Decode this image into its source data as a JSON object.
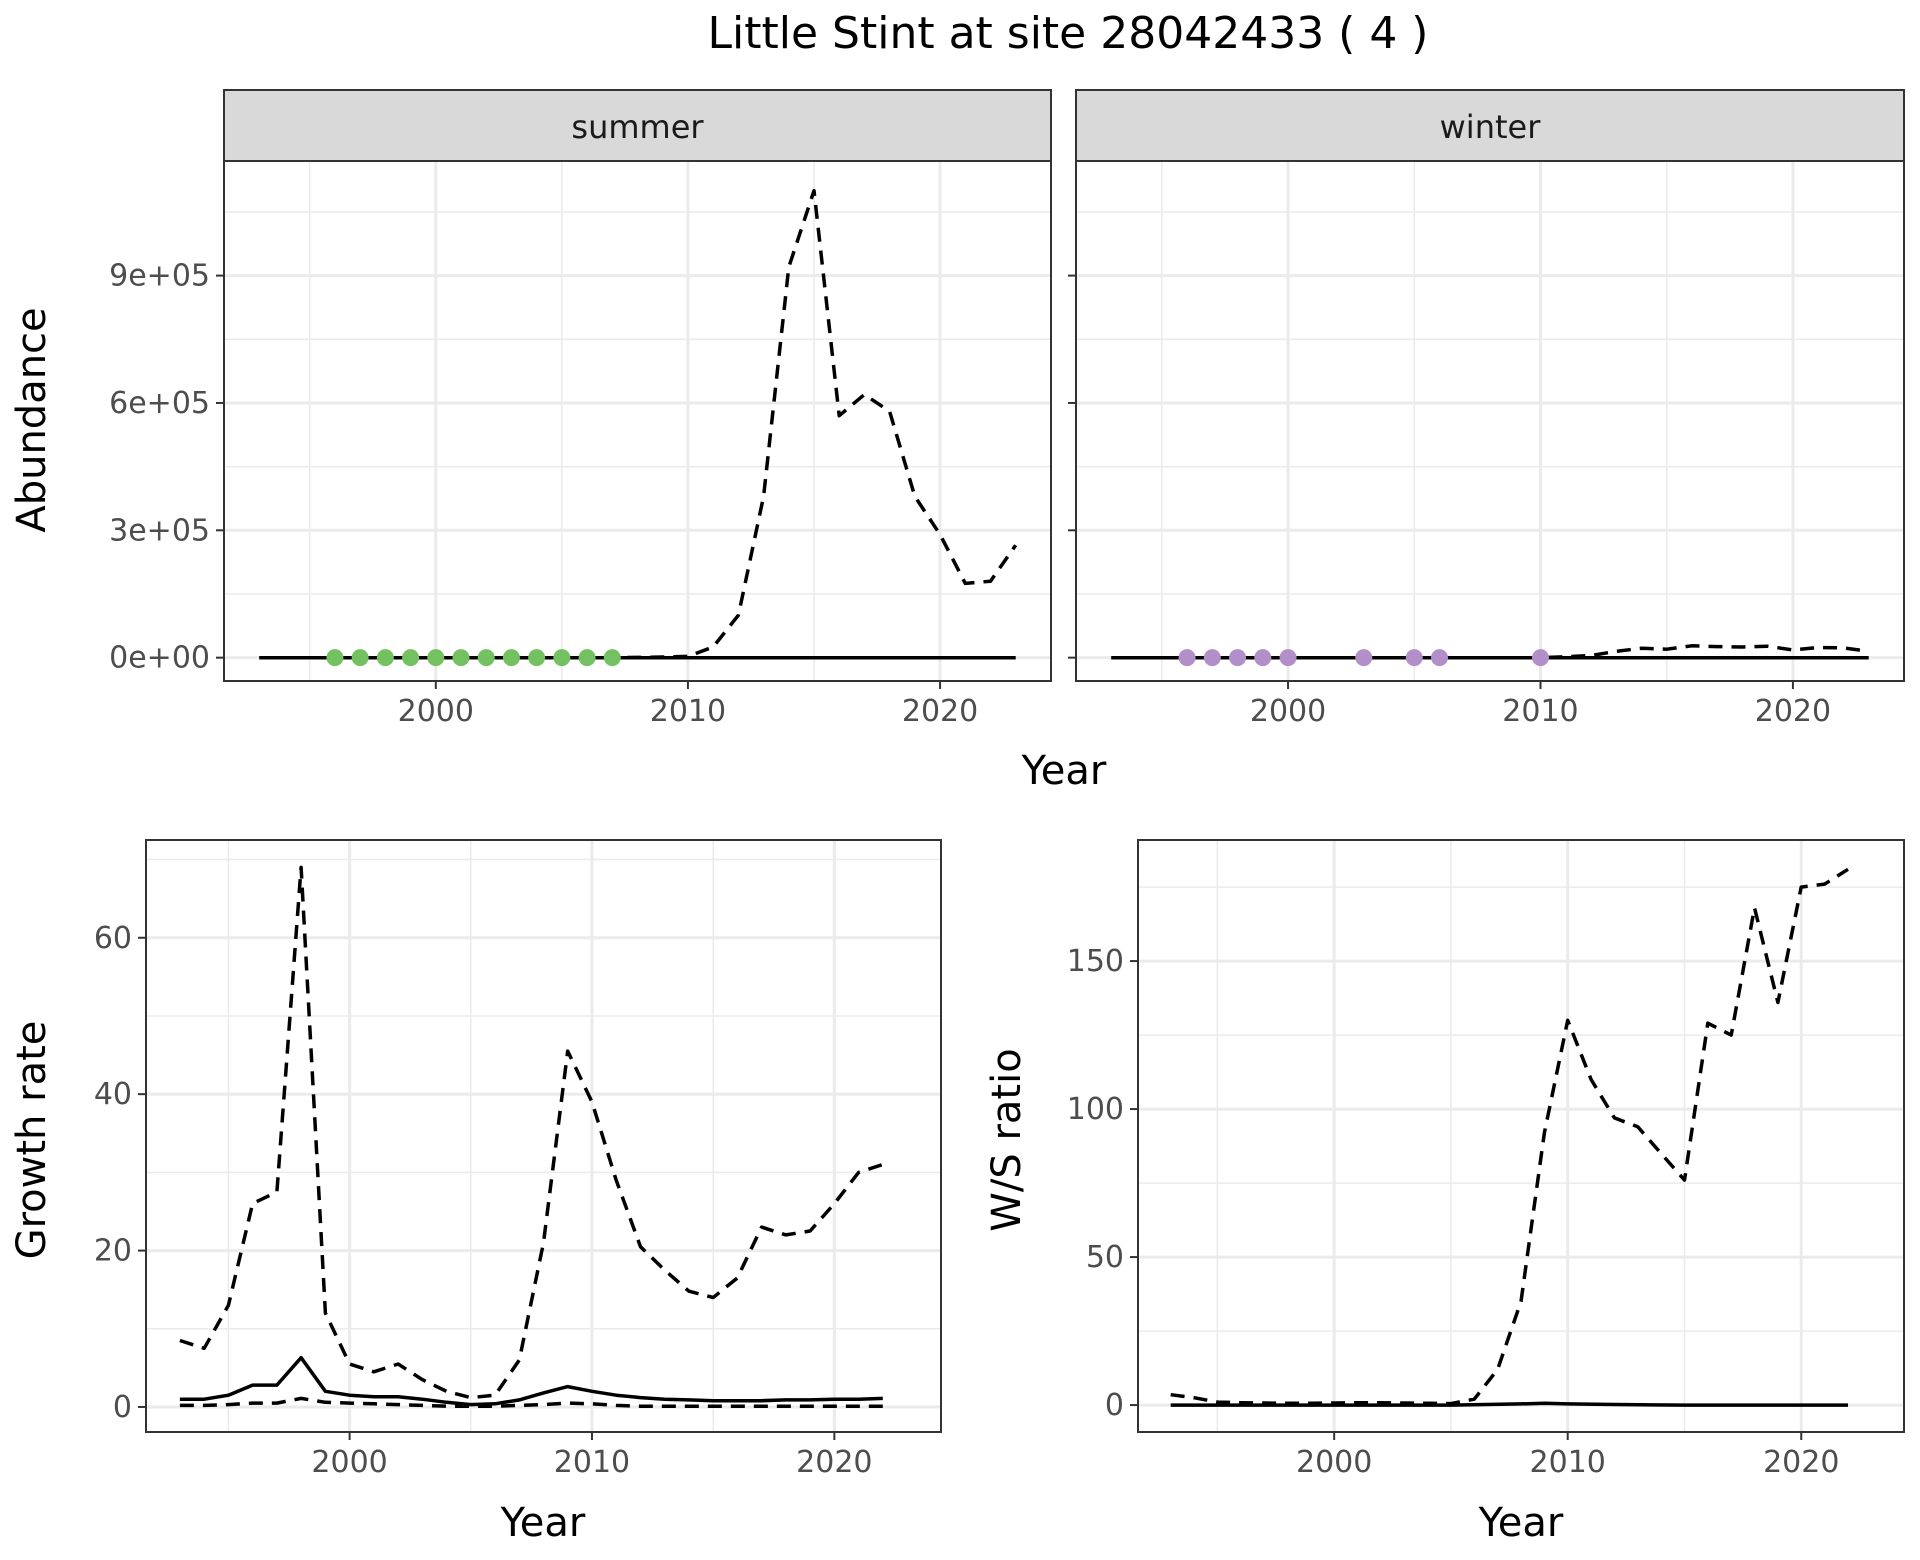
{
  "figure": {
    "title": "Little Stint at site 28042433 ( 4 )"
  },
  "colors": {
    "summer_points": "#74c162",
    "winter_points": "#b38fc9",
    "line": "#000000",
    "grid_major": "#ebebeb",
    "strip_fill": "#d9d9d9",
    "strip_border": "#333333",
    "tick_label": "#4d4d4d"
  },
  "chart_data": [
    {
      "type": "line",
      "panel": "summer",
      "strip_label": "summer",
      "xlabel": "Year",
      "ylabel": "Abundance",
      "xlim": [
        1991.6,
        2024.4
      ],
      "ylim": [
        -55000,
        1170000
      ],
      "x_ticks": [
        2000,
        2010,
        2020
      ],
      "x_tick_labels": [
        "2000",
        "2010",
        "2020"
      ],
      "y_ticks": [
        0,
        300000,
        600000,
        900000
      ],
      "y_tick_labels": [
        "0e+00",
        "3e+05",
        "6e+05",
        "9e+05"
      ],
      "grid": true,
      "series": [
        {
          "style": "dashed",
          "x": [
            1993,
            1994,
            1995,
            1996,
            1997,
            1998,
            1999,
            2000,
            2001,
            2002,
            2003,
            2004,
            2005,
            2006,
            2007,
            2008,
            2009,
            2010,
            2011,
            2012,
            2013,
            2014,
            2015,
            2016,
            2017,
            2018,
            2019,
            2020,
            2021,
            2022,
            2023
          ],
          "y": [
            0,
            0,
            0,
            0,
            0,
            0,
            0,
            0,
            0,
            0,
            0,
            0,
            0,
            0,
            0,
            500,
            1500,
            3000,
            25000,
            100000,
            380000,
            920000,
            1100000,
            570000,
            620000,
            580000,
            380000,
            290000,
            175000,
            180000,
            265000
          ]
        },
        {
          "style": "solid",
          "x": [
            1993,
            2023
          ],
          "y": [
            0,
            0
          ]
        }
      ],
      "points": {
        "x": [
          1996,
          1997,
          1998,
          1999,
          2000,
          2001,
          2002,
          2003,
          2004,
          2005,
          2006,
          2007
        ],
        "y": [
          0,
          0,
          0,
          0,
          0,
          0,
          0,
          0,
          0,
          0,
          0,
          0
        ]
      }
    },
    {
      "type": "line",
      "panel": "winter",
      "strip_label": "winter",
      "xlabel": "Year",
      "ylabel": "Abundance",
      "xlim": [
        1991.6,
        2024.4
      ],
      "ylim": [
        -55000,
        1170000
      ],
      "x_ticks": [
        2000,
        2010,
        2020
      ],
      "x_tick_labels": [
        "2000",
        "2010",
        "2020"
      ],
      "y_ticks": [
        0,
        300000,
        600000,
        900000
      ],
      "grid": true,
      "series": [
        {
          "style": "dashed",
          "x": [
            1993,
            1994,
            1995,
            1996,
            1997,
            1998,
            1999,
            2000,
            2001,
            2002,
            2003,
            2004,
            2005,
            2006,
            2007,
            2008,
            2009,
            2010,
            2011,
            2012,
            2013,
            2014,
            2015,
            2016,
            2017,
            2018,
            2019,
            2020,
            2021,
            2022,
            2023
          ],
          "y": [
            0,
            0,
            0,
            0,
            0,
            0,
            0,
            0,
            0,
            0,
            0,
            0,
            0,
            0,
            0,
            0,
            0,
            0,
            2000,
            5000,
            15000,
            22000,
            20000,
            28000,
            26000,
            25000,
            27000,
            18000,
            24000,
            23000,
            15000
          ]
        },
        {
          "style": "solid",
          "x": [
            1993,
            2023
          ],
          "y": [
            0,
            0
          ]
        }
      ],
      "points": {
        "x": [
          1996,
          1997,
          1998,
          1999,
          2000,
          2003,
          2005,
          2006,
          2010
        ],
        "y": [
          0,
          0,
          0,
          0,
          0,
          0,
          0,
          0,
          0
        ]
      }
    },
    {
      "type": "line",
      "panel": "growth",
      "xlabel": "Year",
      "ylabel": "Growth rate",
      "xlim": [
        1991.6,
        2024.4
      ],
      "ylim": [
        -3.2,
        72.5
      ],
      "x_ticks": [
        2000,
        2010,
        2020
      ],
      "x_tick_labels": [
        "2000",
        "2010",
        "2020"
      ],
      "y_ticks": [
        0,
        20,
        40,
        60
      ],
      "y_tick_labels": [
        "0",
        "20",
        "40",
        "60"
      ],
      "grid": true,
      "series": [
        {
          "style": "dashed",
          "x": [
            1993,
            1994,
            1995,
            1996,
            1997,
            1998,
            1999,
            2000,
            2001,
            2002,
            2003,
            2004,
            2005,
            2006,
            2007,
            2008,
            2009,
            2010,
            2011,
            2012,
            2013,
            2014,
            2015,
            2016,
            2017,
            2018,
            2019,
            2020,
            2021,
            2022
          ],
          "y": [
            8.5,
            7.5,
            13,
            26,
            27.5,
            69,
            12,
            5.5,
            4.5,
            5.5,
            3.5,
            2,
            1.2,
            1.5,
            6,
            21,
            45.5,
            39,
            29,
            20.5,
            17.5,
            14.8,
            14,
            16.5,
            23,
            22,
            22.5,
            26,
            30,
            31
          ]
        },
        {
          "style": "solid",
          "x": [
            1993,
            1994,
            1995,
            1996,
            1997,
            1998,
            1999,
            2000,
            2001,
            2002,
            2003,
            2004,
            2005,
            2006,
            2007,
            2008,
            2009,
            2010,
            2011,
            2012,
            2013,
            2014,
            2015,
            2016,
            2017,
            2018,
            2019,
            2020,
            2021,
            2022
          ],
          "y": [
            1,
            1,
            1.5,
            2.8,
            2.8,
            6.3,
            2,
            1.5,
            1.3,
            1.3,
            1,
            0.6,
            0.3,
            0.4,
            0.9,
            1.8,
            2.6,
            2,
            1.5,
            1.2,
            1,
            0.9,
            0.8,
            0.8,
            0.8,
            0.9,
            0.9,
            1,
            1,
            1.1
          ]
        },
        {
          "style": "dashed",
          "x": [
            1993,
            1994,
            1995,
            1996,
            1997,
            1998,
            1999,
            2000,
            2001,
            2002,
            2003,
            2004,
            2005,
            2006,
            2007,
            2008,
            2009,
            2010,
            2011,
            2012,
            2013,
            2014,
            2015,
            2016,
            2017,
            2018,
            2019,
            2020,
            2021,
            2022
          ],
          "y": [
            0.2,
            0.2,
            0.3,
            0.5,
            0.5,
            1.1,
            0.6,
            0.5,
            0.4,
            0.3,
            0.2,
            0.1,
            0.1,
            0.1,
            0.2,
            0.3,
            0.5,
            0.4,
            0.2,
            0.1,
            0.1,
            0.1,
            0.1,
            0.1,
            0.1,
            0.1,
            0.1,
            0.1,
            0.1,
            0.1
          ]
        }
      ]
    },
    {
      "type": "line",
      "panel": "ratio",
      "xlabel": "Year",
      "ylabel": "W/S ratio",
      "xlim": [
        1991.6,
        2024.4
      ],
      "ylim": [
        -9.1,
        190.9
      ],
      "x_ticks": [
        2000,
        2010,
        2020
      ],
      "x_tick_labels": [
        "2000",
        "2010",
        "2020"
      ],
      "y_ticks": [
        0,
        50,
        100,
        150
      ],
      "y_tick_labels": [
        "0",
        "50",
        "100",
        "150"
      ],
      "grid": true,
      "series": [
        {
          "style": "dashed",
          "x": [
            1993,
            1994,
            1995,
            1996,
            1997,
            1998,
            1999,
            2000,
            2001,
            2002,
            2003,
            2004,
            2005,
            2006,
            2007,
            2008,
            2009,
            2010,
            2011,
            2012,
            2013,
            2014,
            2015,
            2016,
            2017,
            2018,
            2019,
            2020,
            2021,
            2022
          ],
          "y": [
            3.5,
            2.5,
            1,
            0.8,
            0.7,
            0.6,
            0.6,
            0.7,
            0.8,
            0.8,
            0.7,
            0.6,
            0.5,
            2,
            12,
            35,
            92,
            130,
            110,
            97,
            94,
            85,
            76,
            129,
            125,
            168,
            136,
            175,
            176,
            181
          ]
        },
        {
          "style": "solid",
          "x": [
            1993,
            1996,
            2000,
            2005,
            2008,
            2009,
            2010,
            2012,
            2015,
            2020,
            2022
          ],
          "y": [
            0,
            0,
            0,
            0,
            0.4,
            0.6,
            0.4,
            0.2,
            0,
            0,
            0
          ]
        }
      ]
    }
  ]
}
